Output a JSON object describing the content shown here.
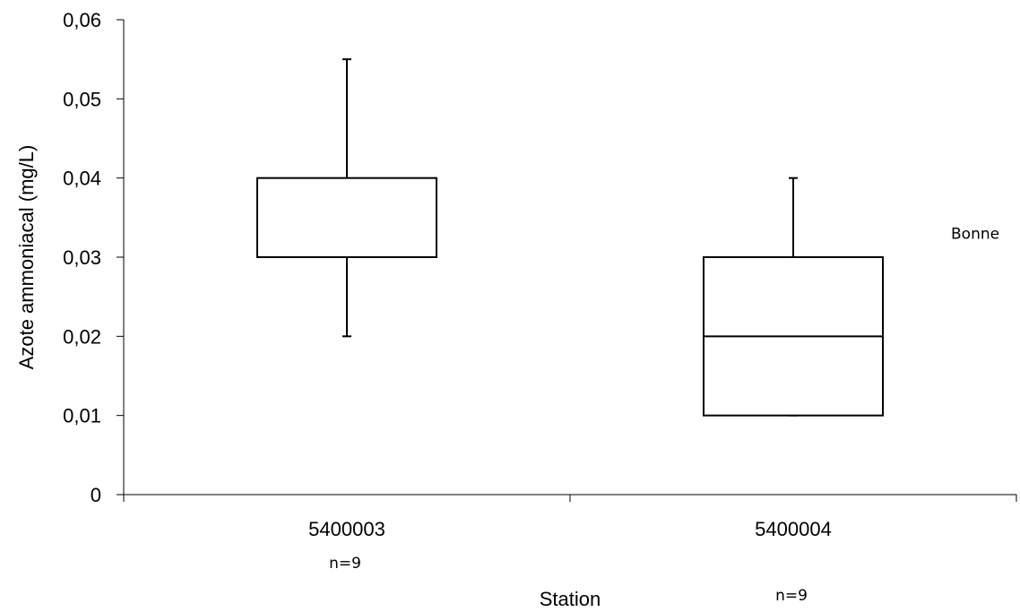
{
  "chart_data": {
    "type": "boxplot",
    "xlabel": "Station",
    "ylabel": "Azote ammoniacal (mg/L)",
    "ylim": [
      0,
      0.06
    ],
    "y_ticks": [
      "0",
      "0,01",
      "0,02",
      "0,03",
      "0,04",
      "0,05",
      "0,06"
    ],
    "y_tick_values": [
      0,
      0.01,
      0.02,
      0.03,
      0.04,
      0.05,
      0.06
    ],
    "categories": [
      "5400003",
      "5400004"
    ],
    "counts": [
      "n=9",
      "n=9"
    ],
    "boxes": [
      {
        "category": "5400003",
        "min": 0.02,
        "q1": 0.03,
        "median": 0.03,
        "q3": 0.04,
        "max": 0.055
      },
      {
        "category": "5400004",
        "min": 0.01,
        "q1": 0.01,
        "median": 0.02,
        "q3": 0.03,
        "max": 0.04
      }
    ],
    "annotation": {
      "text": "Bonne",
      "y": 0.033
    }
  }
}
